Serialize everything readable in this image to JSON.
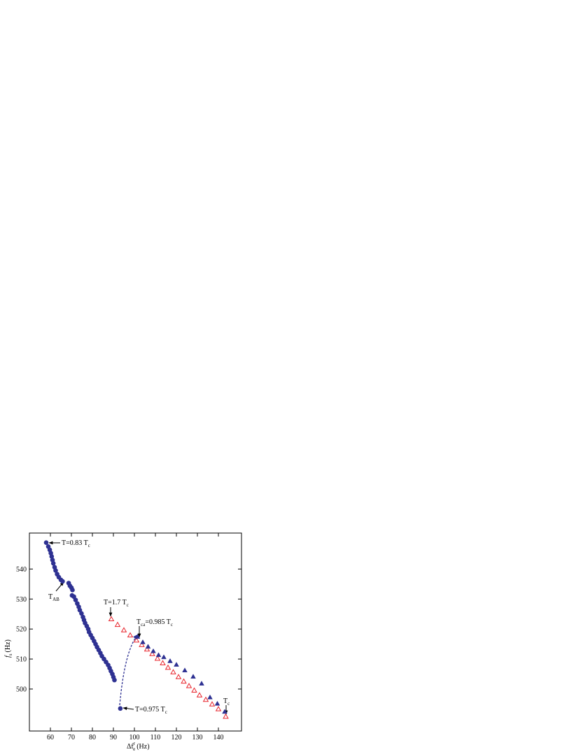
{
  "chart_data": {
    "type": "scatter",
    "x_label": {
      "base": "Δf",
      "sub": "e",
      "sup": "r",
      "unit": "(Hz)"
    },
    "y_label": {
      "base": "f",
      "sub": "s",
      "unit": "(Hz)"
    },
    "xlim": [
      50,
      151
    ],
    "ylim": [
      486,
      552
    ],
    "xticks": [
      60,
      70,
      80,
      90,
      100,
      110,
      120,
      130,
      140
    ],
    "yticks": [
      500,
      510,
      520,
      530,
      540
    ],
    "series": [
      {
        "marker": "circle",
        "color": "#2e3192",
        "x": [
          58,
          59,
          59.7,
          60.2,
          60.6,
          61,
          61.4,
          62,
          62.5,
          63.2,
          64,
          65,
          65.8,
          68.7,
          69.3,
          70,
          70.5,
          70.3,
          71.2,
          72,
          72.8,
          73.5,
          74,
          74.8,
          75.5,
          76,
          76.5,
          77.3,
          78,
          78.4,
          79.2,
          80,
          80.8,
          81.5,
          82.2,
          83,
          83.8,
          84.5,
          85.5,
          86.5,
          87.5,
          88.2,
          88.8,
          89.5,
          90,
          90.5,
          93.3
        ],
        "values": [
          548.8,
          547.5,
          546.4,
          545.3,
          544.2,
          543,
          541.9,
          540.6,
          539.5,
          538.3,
          537.3,
          536.4,
          535.9,
          535.3,
          534.4,
          533.8,
          533,
          531.2,
          530.8,
          529.7,
          528.5,
          527.4,
          526.3,
          525.2,
          524,
          523,
          522,
          521,
          520,
          519,
          518,
          517,
          516,
          515,
          514,
          513,
          512,
          511,
          510,
          509,
          508,
          507,
          506,
          505,
          504,
          503,
          493.5
        ]
      },
      {
        "marker": "open-triangle",
        "color": "#e8242c",
        "x": [
          89,
          92,
          95,
          98,
          101,
          103.5,
          106,
          108.5,
          111,
          113.5,
          116,
          118.5,
          121,
          123.5,
          126,
          128.5,
          131,
          134,
          137,
          140,
          143.5
        ],
        "values": [
          523.3,
          521.4,
          519.6,
          517.9,
          516.2,
          514.7,
          513.2,
          511.7,
          510.1,
          508.6,
          507.1,
          505.6,
          504,
          502.5,
          501,
          499.5,
          497.9,
          496.4,
          494.9,
          493.3,
          490.8
        ]
      },
      {
        "marker": "filled-triangle",
        "color": "#2e3192",
        "x": [
          101.5,
          104,
          106.5,
          109,
          111.5,
          114,
          117,
          120,
          124,
          128,
          132,
          136,
          139.5,
          143
        ],
        "values": [
          517.4,
          515.6,
          514.1,
          512.6,
          511.3,
          510.6,
          509.3,
          508.1,
          506.2,
          504.1,
          501.8,
          497.2,
          495.1,
          492.4
        ]
      }
    ],
    "annotations": [
      {
        "text": "T=0.83 T",
        "sub": "c"
      },
      {
        "text": "T",
        "sub": "AB"
      },
      {
        "text": "T=1.7 T",
        "sub": "c"
      },
      {
        "text": "T",
        "sub": "ca",
        "rest": "=0.985 T",
        "sub2": "c"
      },
      {
        "text": "T=0.975 T",
        "sub": "c"
      },
      {
        "text": "T",
        "sub": "c"
      }
    ]
  }
}
